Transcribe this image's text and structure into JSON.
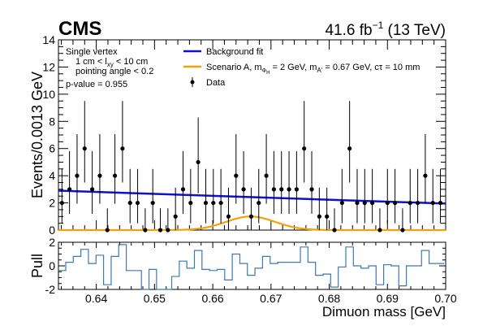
{
  "header": {
    "experiment": "CMS",
    "lumi_prefix": "41.6 fb",
    "lumi_exp": "−1",
    "lumi_suffix": " (13 TeV)"
  },
  "chart_data": [
    {
      "id": "main",
      "type": "scatter",
      "title": "",
      "xlabel": "",
      "ylabel": "Events/0.0013 GeV",
      "xlim": [
        0.6335,
        0.7
      ],
      "ylim": [
        0,
        14
      ],
      "xticks": [
        0.64,
        0.65,
        0.66,
        0.67,
        0.68,
        0.69,
        0.7
      ],
      "yticks": [
        0,
        2,
        4,
        6,
        8,
        10,
        12,
        14
      ],
      "annotations": {
        "line1": "Single vertex",
        "line2_prefix": "1 cm < l",
        "line2_sub": "xy",
        "line2_suffix": " < 10 cm",
        "line3": "pointing angle < 0.2",
        "line4": "p-value = 0.955"
      },
      "legend": {
        "placement": "top-center",
        "background_fit": "Background fit",
        "scenario_prefix": "Scenario A, m",
        "scenario_sub1": "Φ",
        "scenario_sub2": "H",
        "scenario_mid": " = 2 GeV, m",
        "scenario_sub3": "A'",
        "scenario_suffix": " = 0.67 GeV, cτ = 10 mm",
        "data": "Data"
      },
      "colors": {
        "background_fit": "#1010d0",
        "signal": "#f5a00a",
        "data": "#000000"
      },
      "background_fit": {
        "x": [
          0.6335,
          0.7
        ],
        "y": [
          2.9,
          1.95
        ]
      },
      "signal": {
        "mean": 0.6665,
        "sigma": 0.0042,
        "amplitude": 1.0
      },
      "data": {
        "x": [
          0.6341,
          0.6354,
          0.6367,
          0.638,
          0.6393,
          0.6406,
          0.6419,
          0.6432,
          0.6445,
          0.6458,
          0.6471,
          0.6484,
          0.6497,
          0.651,
          0.6523,
          0.6536,
          0.6549,
          0.6562,
          0.6575,
          0.6588,
          0.6601,
          0.6614,
          0.6627,
          0.664,
          0.6653,
          0.6666,
          0.6679,
          0.6692,
          0.6705,
          0.6718,
          0.6731,
          0.6744,
          0.6757,
          0.677,
          0.6783,
          0.6796,
          0.6809,
          0.6822,
          0.6835,
          0.6848,
          0.6861,
          0.6874,
          0.6887,
          0.69,
          0.6913,
          0.6926,
          0.6939,
          0.6952,
          0.6965,
          0.6978,
          0.6991
        ],
        "y": [
          2,
          3,
          4,
          6,
          3,
          4,
          0,
          4,
          6,
          2,
          2,
          0,
          2,
          0,
          0,
          1,
          3,
          2,
          5,
          2,
          2,
          2,
          1,
          4,
          3,
          1,
          2,
          4,
          3,
          3,
          3,
          3,
          6,
          3,
          1,
          1,
          0,
          2,
          6,
          2,
          2,
          2,
          0,
          2,
          2,
          0,
          2,
          2,
          4,
          2,
          2
        ]
      }
    },
    {
      "id": "pull",
      "type": "line",
      "title": "",
      "xlabel": "Dimuon mass [GeV]",
      "ylabel": "Pull",
      "xlim": [
        0.6335,
        0.7
      ],
      "ylim": [
        -2,
        2
      ],
      "xticks": [
        0.64,
        0.65,
        0.66,
        0.67,
        0.68,
        0.69,
        0.7
      ],
      "yticks": [
        -2,
        0,
        2
      ],
      "colors": {
        "pull": "#3b78b4"
      },
      "values": [
        -0.4,
        0.3,
        0.8,
        1.4,
        0.2,
        0.9,
        -1.6,
        0.8,
        1.8,
        -0.4,
        -0.4,
        -2.0,
        -0.3,
        -2.0,
        -2.0,
        -0.9,
        0.4,
        -0.2,
        1.3,
        -0.3,
        -0.4,
        -0.3,
        -1.2,
        1.0,
        0.2,
        -0.8,
        -0.2,
        0.8,
        0.2,
        0.3,
        0.3,
        0.3,
        1.6,
        0.3,
        -0.8,
        -0.7,
        -1.8,
        -0.1,
        1.6,
        0.0,
        -0.2,
        0.0,
        -1.6,
        0.1,
        0.0,
        -1.7,
        0.0,
        0.0,
        1.3,
        0.2,
        0.2
      ]
    }
  ]
}
